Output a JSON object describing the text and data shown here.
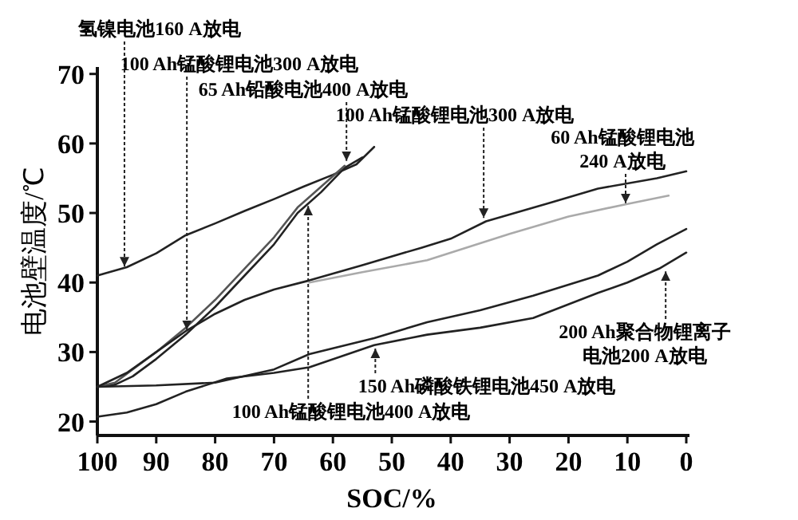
{
  "chart_data": {
    "type": "line",
    "xlabel": "SOC/%",
    "ylabel": "电池壁温度/℃",
    "xlim": [
      100,
      0
    ],
    "ylim": [
      18,
      71
    ],
    "xticks": [
      100,
      90,
      80,
      70,
      60,
      50,
      40,
      30,
      20,
      10,
      0
    ],
    "yticks": [
      20,
      30,
      40,
      50,
      60,
      70
    ],
    "grid": false,
    "marker": "none",
    "line_style": "solid",
    "series": [
      {
        "color": "#222222",
        "x": [
          100,
          95,
          90,
          85,
          80,
          75,
          70,
          65,
          60,
          56,
          53
        ],
        "values": [
          41,
          42.2,
          44.2,
          46.8,
          48.5,
          50.3,
          52,
          53.8,
          55.5,
          57,
          59.5
        ]
      },
      {
        "color": "#222222",
        "x": [
          100,
          97,
          94,
          90,
          85,
          80,
          75,
          70,
          66,
          62,
          58,
          55
        ],
        "values": [
          25,
          25.3,
          26.5,
          29,
          32.5,
          36.5,
          41,
          45.5,
          50,
          53,
          56.5,
          58
        ]
      },
      {
        "color": "#555555",
        "x": [
          100,
          97,
          94,
          90,
          85,
          80,
          75,
          70,
          66,
          62,
          58
        ],
        "values": [
          25,
          25.6,
          27.5,
          30,
          33.5,
          37.5,
          42,
          46.5,
          50.8,
          53.8,
          56.8
        ]
      },
      {
        "color": "#222222",
        "x": [
          100,
          95,
          90,
          85,
          80,
          75,
          70,
          64,
          55,
          45,
          40,
          34,
          25,
          15,
          5,
          0
        ],
        "values": [
          25,
          27,
          30,
          33,
          35.5,
          37.5,
          39,
          40.3,
          42.5,
          45,
          46.3,
          48.8,
          51,
          53.5,
          55,
          56
        ]
      },
      {
        "color": "#aaaaaa",
        "x": [
          64,
          55,
          44,
          30,
          20,
          10,
          3
        ],
        "values": [
          40,
          41.5,
          43.2,
          47,
          49.5,
          51.3,
          52.5
        ]
      },
      {
        "color": "#222222",
        "x": [
          100,
          90,
          80,
          70,
          64,
          53,
          44,
          35,
          26,
          15,
          10,
          5,
          0
        ],
        "values": [
          25,
          25.2,
          25.6,
          27.5,
          29.7,
          32,
          34.3,
          36,
          38.1,
          41,
          43,
          45.5,
          47.7
        ]
      },
      {
        "color": "#222222",
        "x": [
          100,
          95,
          90,
          85,
          78,
          70,
          64,
          53,
          44,
          35,
          26,
          15,
          10,
          4.6,
          0
        ],
        "values": [
          20.7,
          21.3,
          22.5,
          24.3,
          26.2,
          27,
          27.8,
          31,
          32.5,
          33.5,
          34.9,
          38.5,
          40,
          42,
          44.3
        ]
      }
    ],
    "annotations": [
      {
        "text": "氢镍电池160 A放电",
        "x": 95.4,
        "y": 42.3
      },
      {
        "text": "100 Ah锰酸锂电池300 A放电",
        "x": 84.8,
        "y": 33.2
      },
      {
        "text": "65 Ah铅酸电池400 A放电",
        "x": 57.7,
        "y": 57.5
      },
      {
        "text": "100 Ah锰酸锂电池300 A放电",
        "x": 34.4,
        "y": 49.3
      },
      {
        "text": "60 Ah锰酸锂电池240 A放电",
        "x": 10.3,
        "y": 51.4
      },
      {
        "text": "200 Ah聚合物锂离子电池200 A放电",
        "x": 3.5,
        "y": 41.6
      },
      {
        "text": "150 Ah磷酸铁锂电池450 A放电",
        "x": 52.8,
        "y": 30.5
      },
      {
        "text": "100 Ah锰酸锂电池400 A放电",
        "x": 64.2,
        "y": 51
      }
    ]
  }
}
